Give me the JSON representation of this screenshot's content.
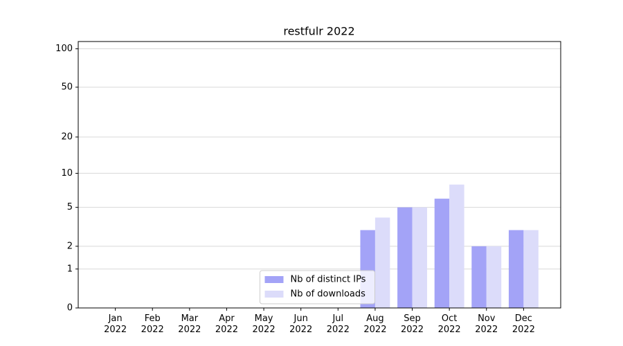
{
  "chart_data": {
    "type": "bar",
    "title": "restfulr 2022",
    "categories": [
      "Jan\n2022",
      "Feb\n2022",
      "Mar\n2022",
      "Apr\n2022",
      "May\n2022",
      "Jun\n2022",
      "Jul\n2022",
      "Aug\n2022",
      "Sep\n2022",
      "Oct\n2022",
      "Nov\n2022",
      "Dec\n2022"
    ],
    "series": [
      {
        "name": "Nb of distinct IPs",
        "color": "#a3a3f7",
        "values": [
          0,
          0,
          0,
          0,
          0,
          0,
          0,
          3,
          5,
          6,
          2,
          3
        ]
      },
      {
        "name": "Nb of downloads",
        "color": "#dcdcfa",
        "values": [
          0,
          0,
          0,
          0,
          0,
          0,
          0,
          4,
          5,
          8,
          2,
          3
        ]
      }
    ],
    "yscale": "log1p",
    "ylim": [
      0,
      114
    ],
    "yticks": [
      0,
      1,
      2,
      5,
      10,
      20,
      50,
      100
    ],
    "grid": true,
    "legend": "lower center"
  }
}
